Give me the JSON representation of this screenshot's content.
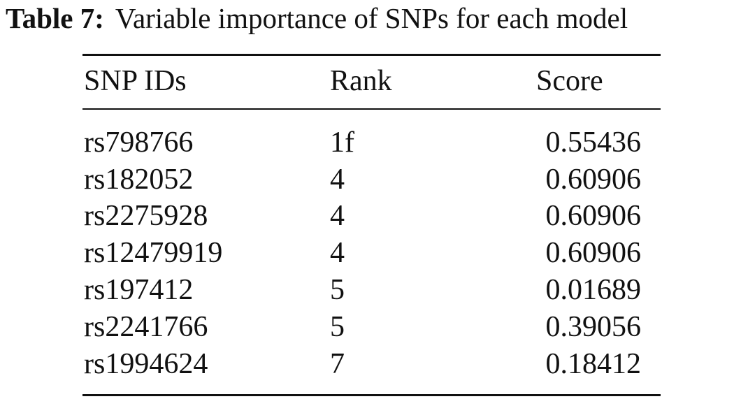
{
  "caption": {
    "label": "Table 7:",
    "text": "Variable importance of SNPs for each model"
  },
  "table": {
    "headers": {
      "id": "SNP IDs",
      "rank": "Rank",
      "score": "Score"
    },
    "rows": [
      {
        "id": "rs798766",
        "rank": "1f",
        "score": "0.55436"
      },
      {
        "id": "rs182052",
        "rank": "4",
        "score": "0.60906"
      },
      {
        "id": "rs2275928",
        "rank": "4",
        "score": "0.60906"
      },
      {
        "id": "rs12479919",
        "rank": "4",
        "score": "0.60906"
      },
      {
        "id": "rs197412",
        "rank": "5",
        "score": "0.01689"
      },
      {
        "id": "rs2241766",
        "rank": "5",
        "score": "0.39056"
      },
      {
        "id": "rs1994624",
        "rank": "7",
        "score": "0.18412"
      }
    ]
  }
}
